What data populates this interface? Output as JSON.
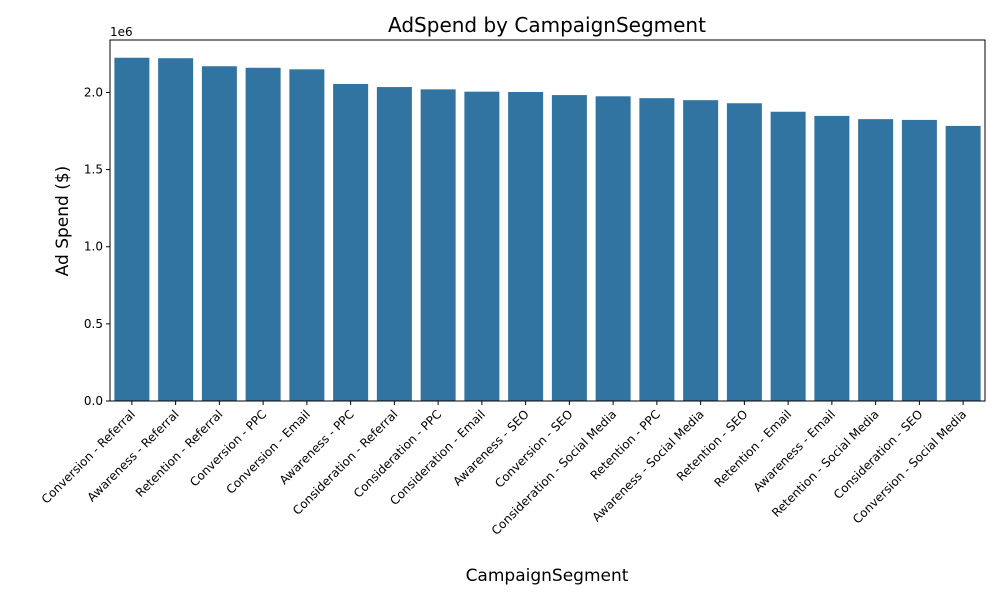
{
  "chart_data": {
    "type": "bar",
    "title": "AdSpend by CampaignSegment",
    "xlabel": "CampaignSegment",
    "ylabel": "Ad Spend ($)",
    "y_offset_label": "1e6",
    "ylim": [
      0,
      2340000
    ],
    "yticks": [
      0,
      500000,
      1000000,
      1500000,
      2000000
    ],
    "ytick_labels": [
      "0.0",
      "0.5",
      "1.0",
      "1.5",
      "2.0"
    ],
    "grid": false,
    "bar_color": "#3274a1",
    "categories": [
      "Conversion - Referral",
      "Awareness - Referral",
      "Retention - Referral",
      "Conversion - PPC",
      "Conversion - Email",
      "Awareness - PPC",
      "Consideration - Referral",
      "Consideration - PPC",
      "Consideration - Email",
      "Awareness - SEO",
      "Conversion - SEO",
      "Consideration - Social Media",
      "Retention - PPC",
      "Awareness - Social Media",
      "Retention - SEO",
      "Retention - Email",
      "Awareness - Email",
      "Retention - Social Media",
      "Consideration - SEO",
      "Conversion - Social Media"
    ],
    "values": [
      2225000,
      2222000,
      2170000,
      2160000,
      2150000,
      2055000,
      2035000,
      2020000,
      2005000,
      2003000,
      1983000,
      1975000,
      1963000,
      1950000,
      1930000,
      1875000,
      1848000,
      1827000,
      1822000,
      1783000
    ]
  }
}
